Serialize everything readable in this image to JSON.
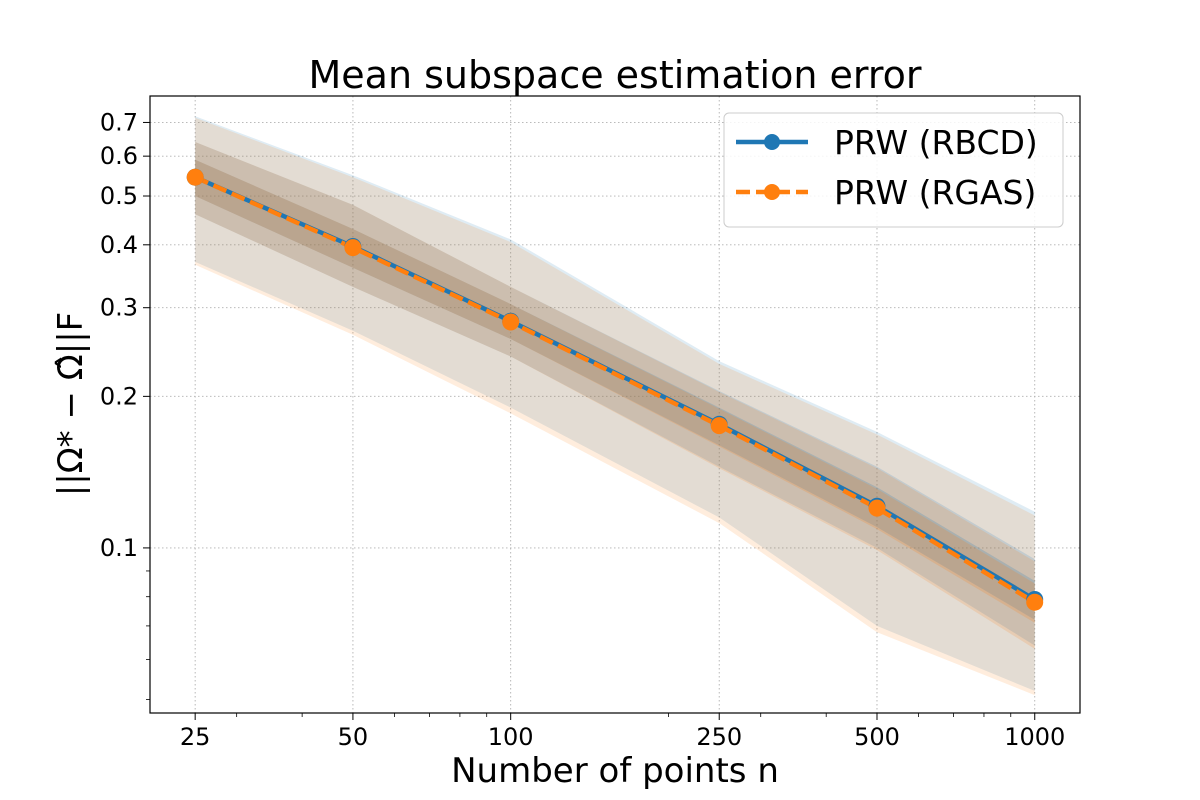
{
  "chart_data": {
    "type": "line",
    "title": "Mean subspace estimation error",
    "xlabel": "Number of points n",
    "ylabel": "||Ω* − Ω̂||F",
    "xscale": "log",
    "yscale": "log",
    "x": [
      25,
      50,
      100,
      250,
      500,
      1000
    ],
    "xticks": [
      25,
      50,
      100,
      250,
      500,
      1000
    ],
    "xtick_labels": [
      "25",
      "50",
      "100",
      "250",
      "500",
      "1000"
    ],
    "yticks": [
      0.1,
      0.2,
      0.3,
      0.4,
      0.5,
      0.6,
      0.7
    ],
    "ytick_labels": [
      "0.1",
      "0.2",
      "0.3",
      "0.4",
      "0.5",
      "0.6",
      "0.7"
    ],
    "xlim": [
      20.5,
      1220
    ],
    "ylim": [
      0.047,
      0.79
    ],
    "grid": true,
    "legend_position": "top-right",
    "series": [
      {
        "name": "PRW (RBCD)",
        "color": "#1f77b4",
        "linestyle": "solid",
        "values": [
          0.545,
          0.397,
          0.282,
          0.176,
          0.121,
          0.079
        ],
        "band_inner_low": [
          0.5,
          0.36,
          0.26,
          0.16,
          0.11,
          0.072
        ],
        "band_inner_high": [
          0.59,
          0.43,
          0.305,
          0.19,
          0.132,
          0.086
        ],
        "band_mid_low": [
          0.46,
          0.33,
          0.24,
          0.145,
          0.1,
          0.064
        ],
        "band_mid_high": [
          0.64,
          0.48,
          0.33,
          0.205,
          0.145,
          0.095
        ],
        "band_outer_low": [
          0.37,
          0.27,
          0.19,
          0.115,
          0.07,
          0.052
        ],
        "band_outer_high": [
          0.72,
          0.55,
          0.41,
          0.235,
          0.17,
          0.118
        ]
      },
      {
        "name": "PRW (RGAS)",
        "color": "#ff7f0e",
        "linestyle": "dashed",
        "values": [
          0.545,
          0.395,
          0.281,
          0.175,
          0.12,
          0.078
        ],
        "band_inner_low": [
          0.5,
          0.36,
          0.26,
          0.159,
          0.109,
          0.071
        ],
        "band_inner_high": [
          0.59,
          0.43,
          0.305,
          0.189,
          0.131,
          0.085
        ],
        "band_mid_low": [
          0.46,
          0.33,
          0.24,
          0.144,
          0.099,
          0.063
        ],
        "band_mid_high": [
          0.64,
          0.48,
          0.33,
          0.204,
          0.144,
          0.094
        ],
        "band_outer_low": [
          0.365,
          0.265,
          0.185,
          0.112,
          0.068,
          0.051
        ],
        "band_outer_high": [
          0.715,
          0.545,
          0.405,
          0.232,
          0.168,
          0.116
        ]
      }
    ]
  }
}
